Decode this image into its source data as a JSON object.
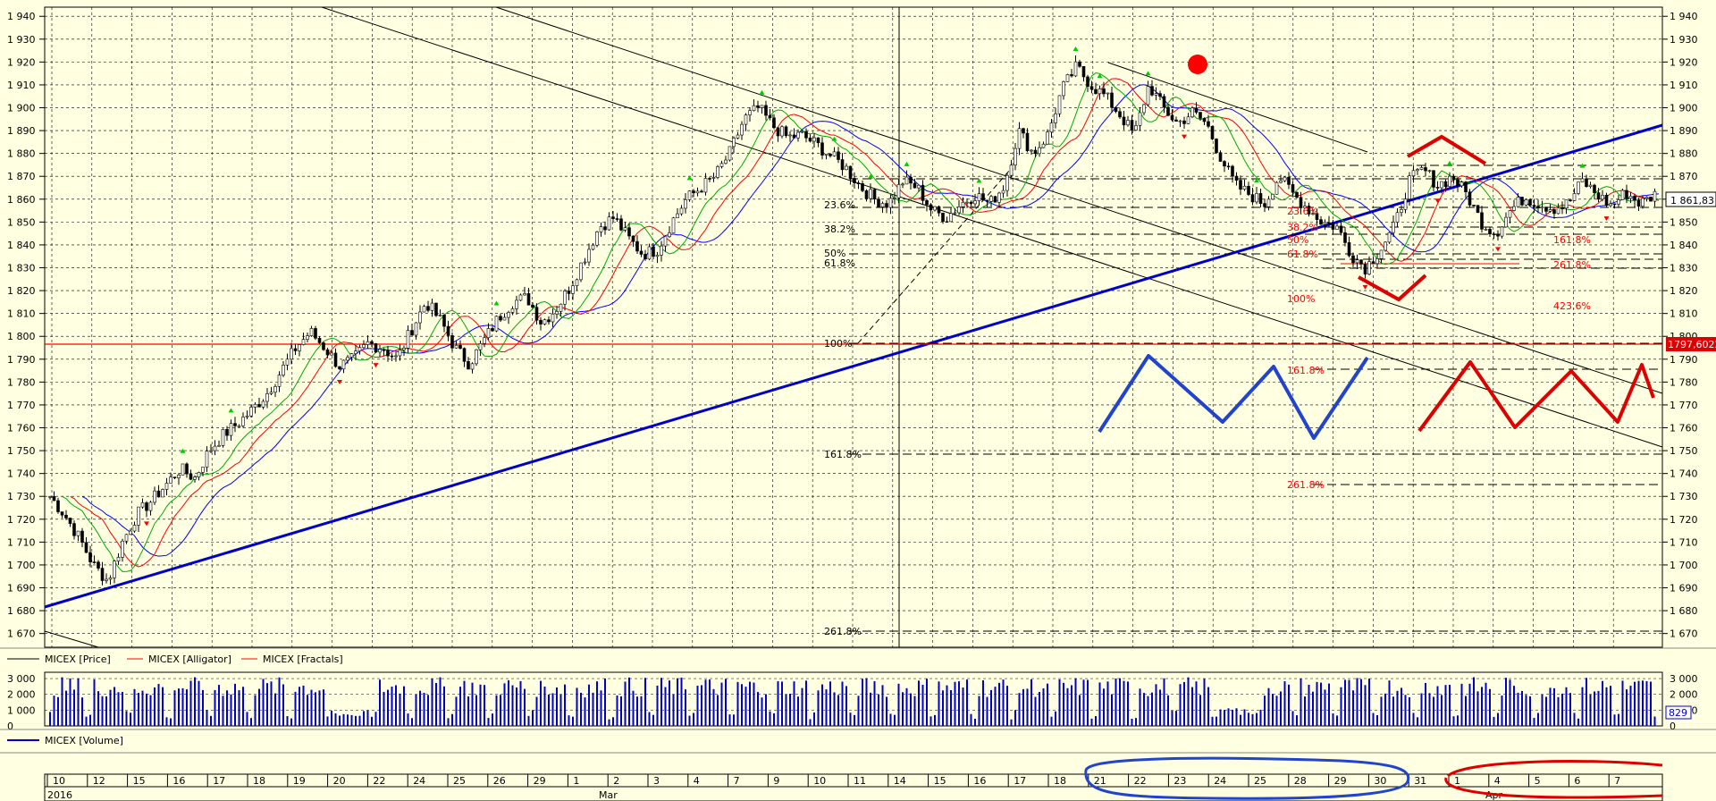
{
  "chart_data": [
    {
      "type": "candlestick",
      "panel": "price",
      "ylim": [
        1664,
        1944
      ],
      "y_ticks": [
        1940,
        1930,
        1920,
        1910,
        1900,
        1890,
        1880,
        1870,
        1860,
        1850,
        1840,
        1830,
        1820,
        1810,
        1800,
        1790,
        1780,
        1770,
        1760,
        1750,
        1740,
        1730,
        1720,
        1710,
        1700,
        1690,
        1680,
        1670
      ],
      "y_tick_labels": [
        "1 940",
        "1 930",
        "1 920",
        "1 910",
        "1 900",
        "1 890",
        "1 880",
        "1 870",
        "1 860",
        "1 850",
        "1 840",
        "1 830",
        "1 820",
        "1 810",
        "1 800",
        "1 790",
        "1 780",
        "1 770",
        "1 760",
        "1 750",
        "1 740",
        "1 730",
        "1 720",
        "1 710",
        "1 700",
        "1 690",
        "1 680",
        "1 670"
      ],
      "grid": true,
      "last_price_label": "1 861,83",
      "level_label": "1797,6022",
      "legend": [
        "MICEX [Price]",
        "MICEX [Alligator]",
        "MICEX [Fractals]"
      ],
      "close_path": [
        1730,
        1722,
        1712,
        1700,
        1693,
        1710,
        1722,
        1728,
        1735,
        1742,
        1738,
        1750,
        1757,
        1762,
        1768,
        1775,
        1785,
        1795,
        1802,
        1795,
        1787,
        1790,
        1797,
        1795,
        1790,
        1803,
        1815,
        1807,
        1795,
        1788,
        1798,
        1808,
        1815,
        1817,
        1806,
        1812,
        1822,
        1835,
        1848,
        1852,
        1843,
        1836,
        1838,
        1850,
        1860,
        1865,
        1870,
        1880,
        1895,
        1900,
        1892,
        1887,
        1888,
        1884,
        1879,
        1874,
        1866,
        1860,
        1858,
        1868,
        1865,
        1855,
        1852,
        1858,
        1862,
        1858,
        1866,
        1890,
        1880,
        1888,
        1908,
        1918,
        1910,
        1905,
        1897,
        1888,
        1910,
        1900,
        1893,
        1898,
        1893,
        1878,
        1866,
        1862,
        1858,
        1870,
        1862,
        1856,
        1850,
        1848,
        1836,
        1830,
        1838,
        1848,
        1868,
        1873,
        1866,
        1870,
        1862,
        1850,
        1845,
        1855,
        1861,
        1858,
        1856,
        1858,
        1868,
        1862,
        1857,
        1863,
        1858,
        1862
      ],
      "fib_labels_left": [
        "23.6%",
        "38.2%",
        "50%",
        "61.8%",
        "100%",
        "161.8%",
        "261.8%"
      ],
      "fib_labels_right": [
        "23.6%",
        "38.2%",
        "50%",
        "61.8%",
        "100%",
        "161.8%",
        "261.8%"
      ],
      "fib_labels_extra": [
        "161.8%",
        "261.8%",
        "423.6%"
      ]
    },
    {
      "type": "bar",
      "panel": "volume",
      "ylim": [
        0,
        3400
      ],
      "y_ticks": [
        3000,
        2000,
        1000,
        0
      ],
      "y_tick_labels": [
        "3 000",
        "2 000",
        "1 000",
        "0"
      ],
      "last_volume_label": "829",
      "legend": [
        "MICEX [Volume]"
      ]
    }
  ],
  "time_axis": {
    "year_label": "2016",
    "month_label": "Mar",
    "month_label_2": "Apr",
    "day_labels": [
      "10",
      "12",
      "15",
      "16",
      "17",
      "18",
      "19",
      "20",
      "22",
      "24",
      "25",
      "26",
      "29",
      "1",
      "2",
      "3",
      "4",
      "7",
      "9",
      "10",
      "11",
      "14",
      "15",
      "16",
      "17",
      "18",
      "21",
      "22",
      "23",
      "24",
      "25",
      "28",
      "29",
      "30",
      "31",
      "1",
      "4",
      "5",
      "6",
      "7"
    ]
  },
  "colors": {
    "background": "#ffffe1",
    "grid": "#000000",
    "trendline": "#0000cc",
    "alligator_jaw": "#0000ff",
    "alligator_teeth": "#ff0000",
    "alligator_lips": "#00aa00",
    "fractal_up": "#00cc00",
    "fractal_down": "#ff0000",
    "fib": "#ff0000"
  }
}
